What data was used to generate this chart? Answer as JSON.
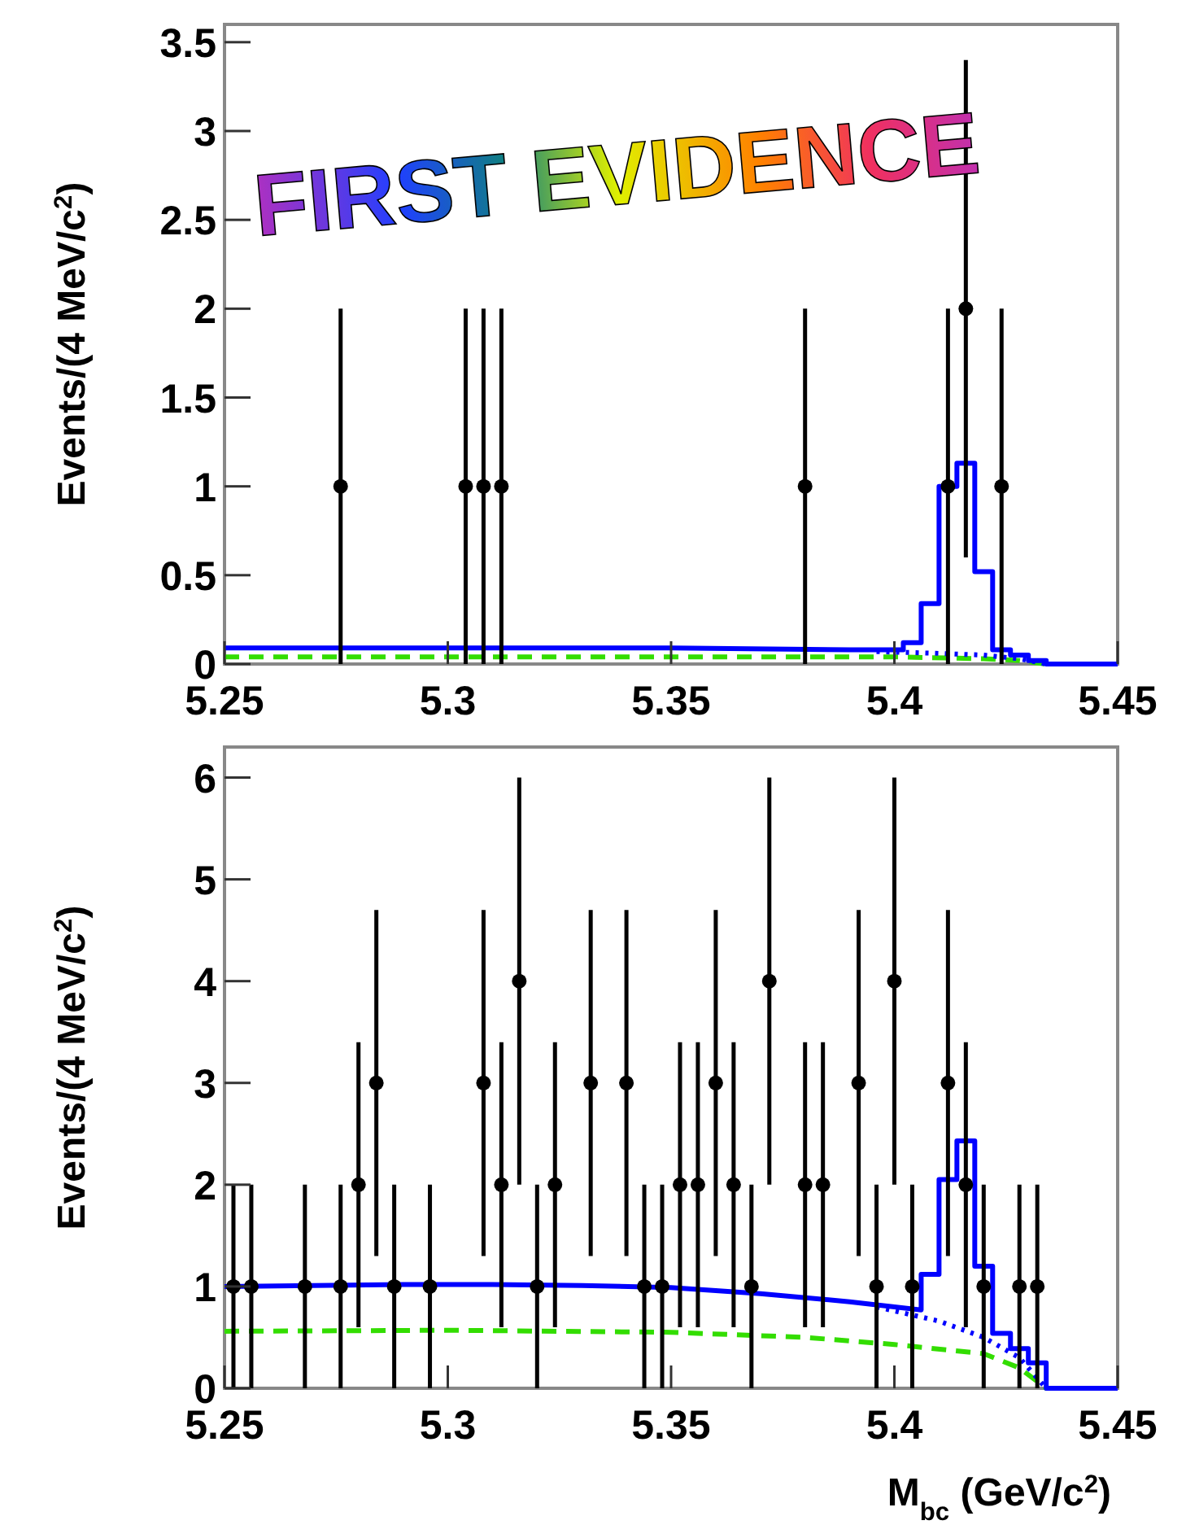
{
  "chart_data": [
    {
      "type": "scatter",
      "ylabel": "Events/(4 MeV/c$^{2}$)",
      "annotations": [
        "FIRST EVIDENCE"
      ],
      "xlim": [
        5.25,
        5.45
      ],
      "xticks": [
        5.25,
        5.3,
        5.35,
        5.4,
        5.45
      ],
      "ylim": [
        0,
        3.6
      ],
      "yticks": [
        0,
        0.5,
        1,
        1.5,
        2,
        2.5,
        3,
        3.5
      ],
      "series": [
        {
          "type": "line",
          "color": "#33dd00",
          "line_style": "dashed",
          "x": [
            5.25,
            5.3,
            5.35,
            5.4,
            5.42,
            5.428,
            5.434,
            5.45
          ],
          "values": [
            0.04,
            0.04,
            0.04,
            0.04,
            0.03,
            0.02,
            0,
            0
          ]
        },
        {
          "type": "line",
          "color": "#0000ff",
          "line_style": "dotted",
          "x": [
            5.396,
            5.41,
            5.42,
            5.428,
            5.434
          ],
          "values": [
            0.07,
            0.06,
            0.05,
            0.03,
            0
          ]
        },
        {
          "type": "line",
          "color": "#0000ff",
          "line_style": "solid",
          "x": [
            5.25,
            5.3,
            5.35,
            5.39,
            5.402,
            5.402,
            5.406,
            5.406,
            5.41,
            5.41,
            5.414,
            5.414,
            5.418,
            5.418,
            5.422,
            5.422,
            5.426,
            5.426,
            5.43,
            5.43,
            5.434,
            5.434,
            5.45
          ],
          "values": [
            0.09,
            0.09,
            0.09,
            0.08,
            0.08,
            0.12,
            0.12,
            0.34,
            0.34,
            1,
            1,
            1.13,
            1.13,
            0.52,
            0.52,
            0.08,
            0.08,
            0.05,
            0.05,
            0.02,
            0.02,
            0,
            0
          ]
        },
        {
          "marker": "circle",
          "color": "#000000",
          "x": [
            5.276,
            5.304,
            5.308,
            5.312,
            5.38,
            5.412,
            5.416,
            5.424
          ],
          "values": [
            1,
            1,
            1,
            1,
            1,
            1,
            2,
            1
          ],
          "errors": [
            [
              0,
              2
            ],
            [
              0,
              2
            ],
            [
              0,
              2
            ],
            [
              0,
              2
            ],
            [
              0,
              2
            ],
            [
              0,
              2
            ],
            [
              0.6,
              3.4
            ],
            [
              0,
              2
            ]
          ]
        }
      ]
    },
    {
      "type": "scatter",
      "xlabel": "M$_{bc}$ (GeV/c$^{2}$)",
      "ylabel": "Events/(4 MeV/c$^{2}$)",
      "xlim": [
        5.25,
        5.45
      ],
      "xticks": [
        5.25,
        5.3,
        5.35,
        5.4,
        5.45
      ],
      "ylim": [
        0,
        6.3
      ],
      "yticks": [
        0,
        1,
        2,
        3,
        4,
        5,
        6
      ],
      "series": [
        {
          "type": "line",
          "color": "#33dd00",
          "line_style": "dashed",
          "x": [
            5.25,
            5.3,
            5.35,
            5.38,
            5.4,
            5.42,
            5.428,
            5.434,
            5.45
          ],
          "values": [
            0.56,
            0.57,
            0.55,
            0.5,
            0.43,
            0.34,
            0.2,
            0,
            0
          ]
        },
        {
          "type": "line",
          "color": "#0000ff",
          "line_style": "dotted",
          "x": [
            5.396,
            5.41,
            5.42,
            5.428,
            5.434
          ],
          "values": [
            0.8,
            0.66,
            0.5,
            0.3,
            0
          ]
        },
        {
          "type": "line",
          "color": "#0000ff",
          "line_style": "solid",
          "x": [
            5.25,
            5.27,
            5.29,
            5.31,
            5.33,
            5.35,
            5.37,
            5.39,
            5.406,
            5.406,
            5.41,
            5.41,
            5.414,
            5.414,
            5.418,
            5.418,
            5.422,
            5.422,
            5.426,
            5.426,
            5.43,
            5.43,
            5.434,
            5.434,
            5.45
          ],
          "values": [
            1,
            1.01,
            1.02,
            1.02,
            1.01,
            0.99,
            0.93,
            0.85,
            0.77,
            1.12,
            1.12,
            2.05,
            2.05,
            2.43,
            2.43,
            1.2,
            1.2,
            0.54,
            0.54,
            0.39,
            0.39,
            0.25,
            0.25,
            0,
            0
          ]
        },
        {
          "marker": "circle",
          "color": "#000000",
          "x": [
            5.252,
            5.256,
            5.268,
            5.276,
            5.28,
            5.284,
            5.288,
            5.296,
            5.308,
            5.312,
            5.316,
            5.32,
            5.324,
            5.332,
            5.34,
            5.344,
            5.348,
            5.352,
            5.356,
            5.36,
            5.364,
            5.368,
            5.372,
            5.38,
            5.384,
            5.392,
            5.396,
            5.4,
            5.404,
            5.412,
            5.416,
            5.42,
            5.428,
            5.432
          ],
          "values": [
            1,
            1,
            1,
            1,
            2,
            3,
            1,
            1,
            3,
            2,
            4,
            1,
            2,
            3,
            3,
            1,
            1,
            2,
            2,
            3,
            2,
            1,
            4,
            2,
            2,
            3,
            1,
            4,
            1,
            3,
            2,
            1,
            1,
            1
          ],
          "errors": [
            [
              0,
              2
            ],
            [
              0,
              2
            ],
            [
              0,
              2
            ],
            [
              0,
              2
            ],
            [
              0.6,
              3.4
            ],
            [
              1.3,
              4.7
            ],
            [
              0,
              2
            ],
            [
              0,
              2
            ],
            [
              1.3,
              4.7
            ],
            [
              0.6,
              3.4
            ],
            [
              2,
              6
            ],
            [
              0,
              2
            ],
            [
              0.6,
              3.4
            ],
            [
              1.3,
              4.7
            ],
            [
              1.3,
              4.7
            ],
            [
              0,
              2
            ],
            [
              0,
              2
            ],
            [
              0.6,
              3.4
            ],
            [
              0.6,
              3.4
            ],
            [
              1.3,
              4.7
            ],
            [
              0.6,
              3.4
            ],
            [
              0,
              2
            ],
            [
              2,
              6
            ],
            [
              0.6,
              3.4
            ],
            [
              0.6,
              3.4
            ],
            [
              1.3,
              4.7
            ],
            [
              0,
              2
            ],
            [
              2,
              6
            ],
            [
              0,
              2
            ],
            [
              1.3,
              4.7
            ],
            [
              0.6,
              3.4
            ],
            [
              0,
              2
            ],
            [
              0,
              2
            ],
            [
              0,
              2
            ]
          ]
        }
      ]
    }
  ]
}
